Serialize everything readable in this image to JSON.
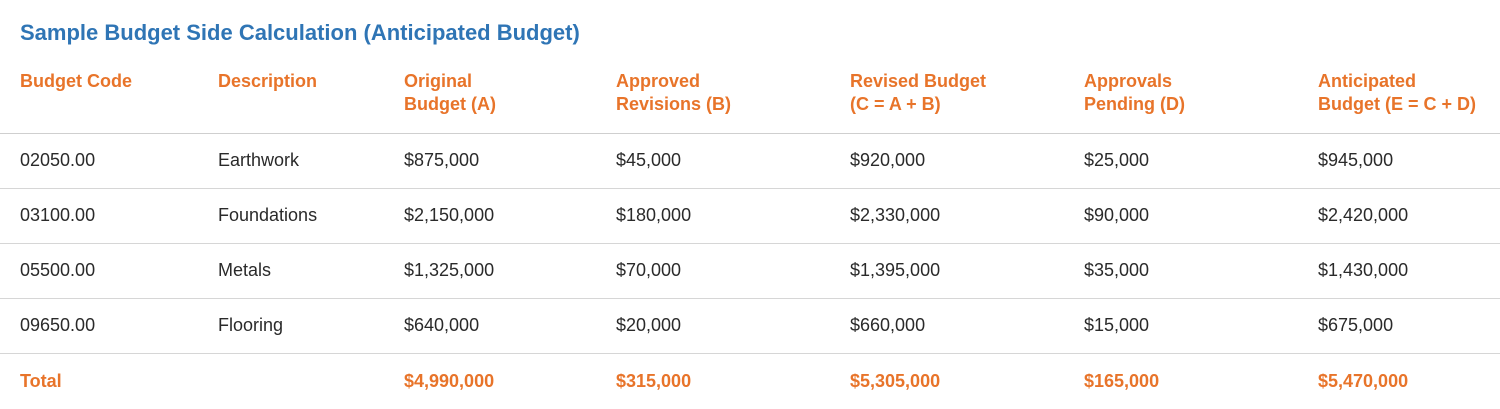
{
  "title": "Sample Budget Side Calculation (Anticipated Budget)",
  "columns": [
    {
      "line1": "Budget Code",
      "line2": ""
    },
    {
      "line1": "Description",
      "line2": ""
    },
    {
      "line1": "Original",
      "line2": "Budget (A)"
    },
    {
      "line1": "Approved",
      "line2": "Revisions (B)"
    },
    {
      "line1": "Revised Budget",
      "line2": "(C = A + B)"
    },
    {
      "line1": "Approvals",
      "line2": "Pending (D)"
    },
    {
      "line1": "Anticipated",
      "line2": "Budget (E = C + D)"
    }
  ],
  "rows": [
    [
      "02050.00",
      "Earthwork",
      "$875,000",
      "$45,000",
      "$920,000",
      "$25,000",
      "$945,000"
    ],
    [
      "03100.00",
      "Foundations",
      "$2,150,000",
      "$180,000",
      "$2,330,000",
      "$90,000",
      "$2,420,000"
    ],
    [
      "05500.00",
      "Metals",
      "$1,325,000",
      "$70,000",
      "$1,395,000",
      "$35,000",
      "$1,430,000"
    ],
    [
      "09650.00",
      "Flooring",
      "$640,000",
      "$20,000",
      "$660,000",
      "$15,000",
      "$675,000"
    ]
  ],
  "total": [
    "Total",
    "",
    "$4,990,000",
    "$315,000",
    "$5,305,000",
    "$165,000",
    "$5,470,000"
  ],
  "colors": {
    "title": "#2f75b5",
    "header_and_total": "#e8742a",
    "body_text": "#2a2a2a",
    "row_divider": "#d6d6d6"
  }
}
